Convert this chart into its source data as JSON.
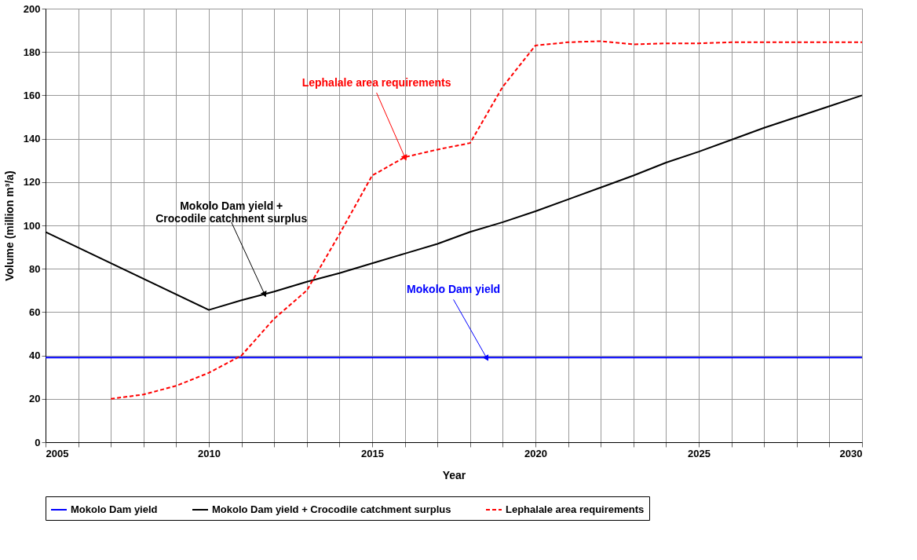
{
  "chart_data": {
    "type": "line",
    "xlabel": "Year",
    "ylabel": "Volume (million m³/a)",
    "xlim": [
      2005,
      2030
    ],
    "xticks": [
      2005,
      {
        "value": 2006,
        "label": null
      },
      {
        "value": 2007,
        "label": null
      },
      {
        "value": 2008,
        "label": null
      },
      {
        "value": 2009,
        "label": null
      },
      2010,
      {
        "value": 2011,
        "label": null
      },
      {
        "value": 2012,
        "label": null
      },
      {
        "value": 2013,
        "label": null
      },
      {
        "value": 2014,
        "label": null
      },
      2015,
      {
        "value": 2016,
        "label": null
      },
      {
        "value": 2017,
        "label": null
      },
      {
        "value": 2018,
        "label": null
      },
      {
        "value": 2019,
        "label": null
      },
      2020,
      {
        "value": 2021,
        "label": null
      },
      {
        "value": 2022,
        "label": null
      },
      {
        "value": 2023,
        "label": null
      },
      {
        "value": 2024,
        "label": null
      },
      2025,
      {
        "value": 2026,
        "label": null
      },
      {
        "value": 2027,
        "label": null
      },
      {
        "value": 2028,
        "label": null
      },
      {
        "value": 2029,
        "label": null
      },
      2030
    ],
    "ylim": [
      0,
      200
    ],
    "yticks": [
      0,
      20,
      40,
      60,
      80,
      100,
      120,
      140,
      160,
      180,
      200
    ],
    "grid": true,
    "legend": "bottom",
    "marker": "none",
    "series": [
      {
        "name": "Mokolo Dam yield",
        "color": "#0000ff",
        "line_style": "solid",
        "x": [
          2005,
          2030
        ],
        "values": [
          39,
          39
        ]
      },
      {
        "name": "Mokolo Dam yield + Crocodile catchment surplus",
        "color": "#000000",
        "line_style": "solid",
        "x": [
          2005,
          2010,
          2011,
          2012,
          2013,
          2014,
          2015,
          2016,
          2017,
          2018,
          2019,
          2020,
          2021,
          2022,
          2023,
          2024,
          2025,
          2026,
          2027,
          2028,
          2029,
          2030
        ],
        "values": [
          97,
          61,
          65.5,
          69.5,
          74,
          78,
          82.5,
          87,
          91.5,
          97,
          101.5,
          106.5,
          112,
          117.5,
          123,
          129,
          134,
          139.5,
          145,
          150,
          155,
          160
        ]
      },
      {
        "name": "Lephalale area requirements",
        "color": "#ff0000",
        "line_style": "dashed",
        "x": [
          2007,
          2008,
          2009,
          2010,
          2011,
          2012,
          2013,
          2014,
          2015,
          2016,
          2017,
          2018,
          2019,
          2020,
          2021,
          2022,
          2023,
          2024,
          2025,
          2026,
          2027,
          2028,
          2029,
          2030
        ],
        "values": [
          20,
          22,
          26,
          32,
          40,
          57,
          70,
          96,
          123,
          131.5,
          135,
          138,
          164,
          183,
          184.5,
          185,
          183.5,
          184,
          184,
          184.5,
          184.5,
          184.5,
          184.5,
          184.5
        ]
      }
    ],
    "annotations": [
      {
        "text": "Mokolo Dam yield",
        "x": 2018.5,
        "y": 39
      },
      {
        "text": "Mokolo Dam yield +\nCrocodile catchment surplus",
        "x": 2011.7,
        "y": 68.5
      },
      {
        "text": "Lephalale area requirements",
        "x": 2016,
        "y": 131.5
      }
    ]
  }
}
